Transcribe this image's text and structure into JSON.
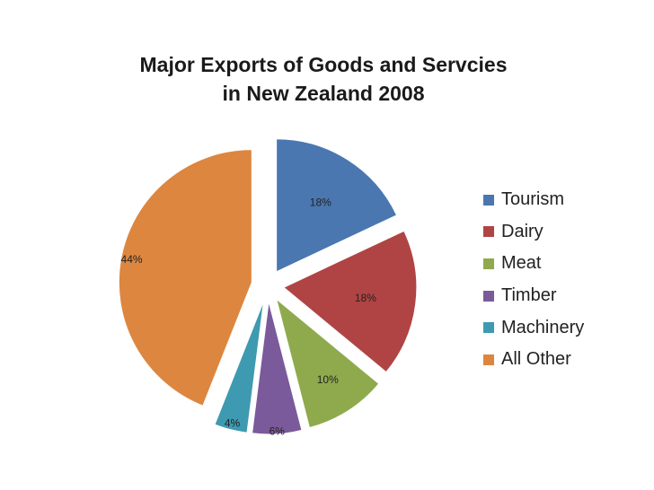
{
  "chart_data": {
    "type": "pie",
    "title": [
      "Major Exports of Goods and Servcies",
      "in New Zealand 2008"
    ],
    "categories": [
      "Tourism",
      "Dairy",
      "Meat",
      "Timber",
      "Machinery",
      "All Other"
    ],
    "values": [
      18,
      18,
      10,
      6,
      4,
      44
    ],
    "labels": [
      "18%",
      "18%",
      "10%",
      "6%",
      "4%",
      "44%"
    ],
    "colors": [
      "#4a77b0",
      "#b04444",
      "#8faa4d",
      "#7a5a9a",
      "#3e9ab0",
      "#dd8640"
    ],
    "exploded": true,
    "legend_position": "right"
  }
}
